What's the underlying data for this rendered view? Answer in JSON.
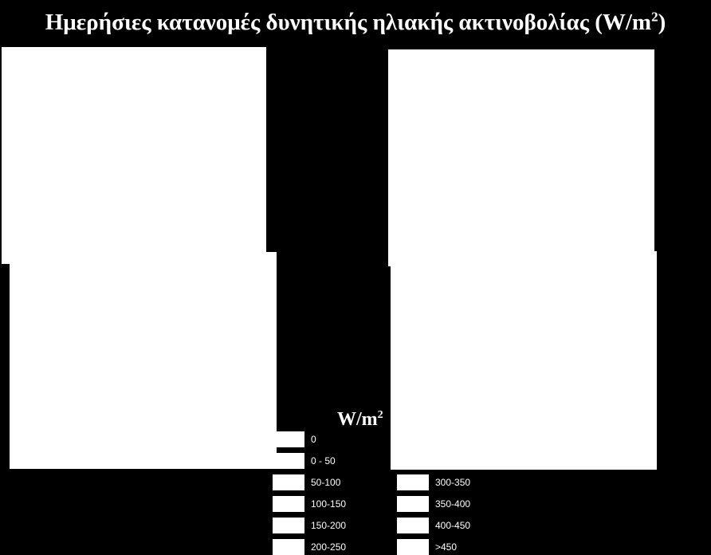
{
  "title": {
    "text": "Ημερήσιες κατανομές δυνητικής ηλιακής ακτινοβολίας (W/m",
    "sup": "2",
    "close": ")"
  },
  "maps": [
    {
      "name": "map-panel-1",
      "fill": "#ffffff"
    },
    {
      "name": "map-panel-2",
      "fill": "#ffffff"
    },
    {
      "name": "map-panel-3",
      "fill": "#ffffff"
    },
    {
      "name": "map-panel-4",
      "fill": "#ffffff"
    }
  ],
  "legend": {
    "title_base": "W/m",
    "title_sup": "2",
    "classes": [
      "0",
      "0 - 50",
      "50-100",
      "100-150",
      "150-200",
      "200-250",
      "300-350",
      "350-400",
      "400-450",
      ">450"
    ]
  },
  "colors": {
    "background": "#000000",
    "panel": "#ffffff",
    "text": "#ffffff"
  }
}
